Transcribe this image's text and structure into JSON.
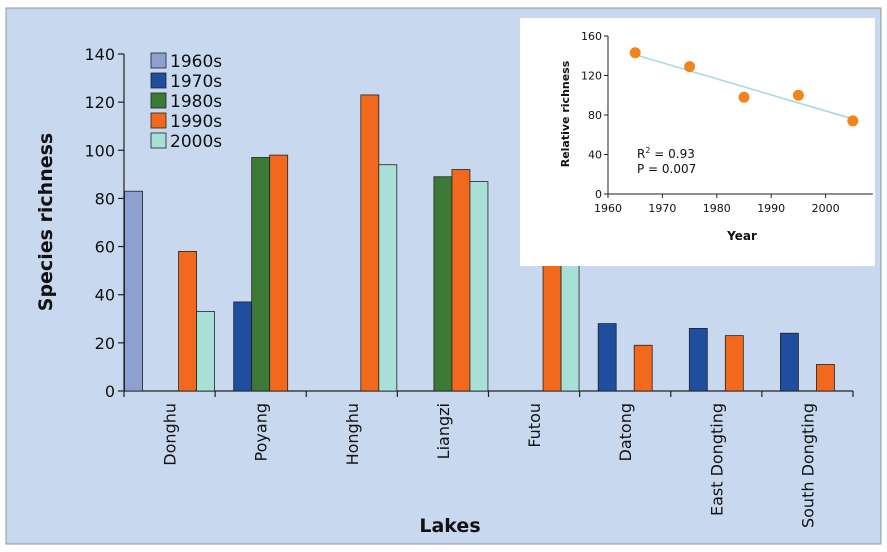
{
  "chart_data": [
    {
      "type": "bar",
      "xlabel": "Lakes",
      "ylabel": "Species richness",
      "ylim": [
        0,
        140
      ],
      "yticks": [
        0,
        20,
        40,
        60,
        80,
        100,
        120,
        140
      ],
      "grid": false,
      "legend_position": "top-left",
      "categories": [
        "Donghu",
        "Poyang",
        "Honghu",
        "Liangzi",
        "Futou",
        "Datong",
        "East Dongting",
        "South Dongting"
      ],
      "series": [
        {
          "name": "1960s",
          "color": "#8da0d0",
          "values": [
            83,
            null,
            null,
            null,
            null,
            null,
            null,
            null
          ]
        },
        {
          "name": "1970s",
          "color": "#1f4e9e",
          "values": [
            null,
            37,
            null,
            null,
            null,
            28,
            26,
            24
          ]
        },
        {
          "name": "1980s",
          "color": "#3d7a35",
          "values": [
            null,
            97,
            null,
            89,
            null,
            null,
            null,
            null
          ]
        },
        {
          "name": "1990s",
          "color": "#f2691e",
          "values": [
            58,
            98,
            123,
            92,
            90,
            19,
            23,
            11
          ]
        },
        {
          "name": "2000s",
          "color": "#a8e0d8",
          "values": [
            33,
            null,
            94,
            87,
            61,
            null,
            null,
            null
          ]
        }
      ]
    },
    {
      "type": "scatter",
      "xlabel": "Year",
      "ylabel": "Relative richness",
      "xlim": [
        1960,
        2010
      ],
      "ylim": [
        0,
        160
      ],
      "xticks": [
        1960,
        1970,
        1980,
        1990,
        2000
      ],
      "yticks": [
        0,
        40,
        80,
        120,
        160
      ],
      "grid": false,
      "x": [
        1965,
        1975,
        1985,
        1995,
        2005
      ],
      "y": [
        143,
        129,
        98,
        100,
        74
      ],
      "point_color": "#f2841e",
      "trendline": {
        "x": [
          1965,
          2005
        ],
        "y": [
          141,
          76
        ],
        "color": "#a8d8e0"
      },
      "annotations": {
        "r2_prefix": "R",
        "r2_sup": "2",
        "r2_value": " = 0.93",
        "p_text": "P = 0.007"
      }
    }
  ],
  "colors": {
    "page_bg": "#ffffff",
    "plot_bg": "#c8d8ef",
    "inset_bg": "#ffffff",
    "axis": "#222222",
    "text": "#111111"
  }
}
